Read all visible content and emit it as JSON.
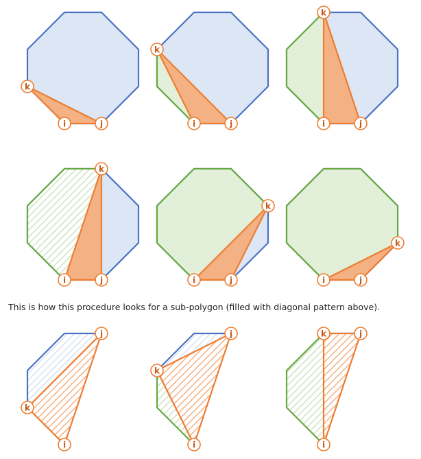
{
  "colors": {
    "blue_stroke": "#4a72c4",
    "blue_fill": "#dce6f4",
    "green_stroke": "#67a843",
    "green_fill": "#e2efd9",
    "orange_stroke": "#ed7d31",
    "orange_fill": "#f4b183",
    "vertex_label": "#c85a18"
  },
  "labels": {
    "i": "i",
    "j": "j",
    "k": "k"
  },
  "caption": "This is how this procedure looks for a sub-polygon (filled with diagonal pattern above).",
  "row1": [
    {
      "k": 7,
      "green": []
    },
    {
      "k": 6,
      "green": [
        6,
        7,
        0
      ]
    },
    {
      "k": 5,
      "green": [
        5,
        6,
        7,
        0
      ]
    }
  ],
  "row2": [
    {
      "k": 4,
      "green": [
        4,
        5,
        6,
        7,
        0
      ],
      "hatched": true
    },
    {
      "k": 3,
      "green": [
        3,
        4,
        5,
        6,
        7,
        0
      ]
    },
    {
      "k": 2,
      "green": [
        2,
        3,
        4,
        5,
        6,
        7,
        0
      ]
    }
  ],
  "row3": [
    {
      "k": 7
    },
    {
      "k": 6
    },
    {
      "k": 5
    }
  ]
}
